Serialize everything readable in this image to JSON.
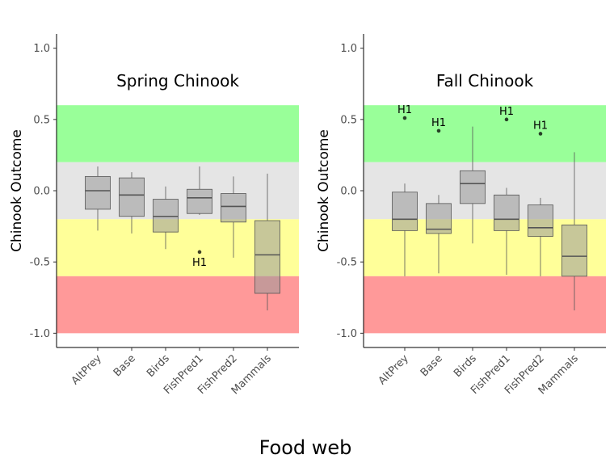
{
  "chart_data": {
    "xlabel": "Food web",
    "ylim": [
      -1.1,
      1.1
    ],
    "yticks": [
      1.0,
      0.5,
      0.0,
      -0.5,
      -1.0
    ],
    "ytick_labels": [
      "1.0",
      "0.5",
      "0.0",
      "-0.5",
      "-1.0"
    ],
    "bands": [
      {
        "from": 0.2,
        "to": 0.6,
        "color": "#99ff99"
      },
      {
        "from": -0.2,
        "to": 0.2,
        "color": "#e5e5e5"
      },
      {
        "from": -0.6,
        "to": -0.2,
        "color": "#ffff99"
      },
      {
        "from": -1.0,
        "to": -0.6,
        "color": "#ff9999"
      }
    ],
    "colors": {
      "box_fill": "#999999",
      "box_stroke": "#555555",
      "axis": "#000000"
    },
    "panels": [
      {
        "type": "box",
        "title": "Spring Chinook",
        "ylabel": "Chinook Outcome",
        "categories": [
          "AltPrey",
          "Base",
          "Birds",
          "FishPred1",
          "FishPred2",
          "Mammals"
        ],
        "boxes": [
          {
            "min": -0.28,
            "q1": -0.13,
            "median": 0.0,
            "q3": 0.1,
            "max": 0.17
          },
          {
            "min": -0.3,
            "q1": -0.18,
            "median": -0.03,
            "q3": 0.09,
            "max": 0.13
          },
          {
            "min": -0.41,
            "q1": -0.29,
            "median": -0.18,
            "q3": -0.06,
            "max": 0.03
          },
          {
            "min": -0.17,
            "q1": -0.16,
            "median": -0.05,
            "q3": 0.01,
            "max": 0.17
          },
          {
            "min": -0.47,
            "q1": -0.22,
            "median": -0.11,
            "q3": -0.02,
            "max": 0.1
          },
          {
            "min": -0.84,
            "q1": -0.72,
            "median": -0.45,
            "q3": -0.21,
            "max": 0.12
          }
        ],
        "outliers": [
          {
            "category": "FishPred1",
            "value": -0.43,
            "label": "H1"
          }
        ]
      },
      {
        "type": "box",
        "title": "Fall Chinook",
        "ylabel": "Chinook Outcome",
        "categories": [
          "AltPrey",
          "Base",
          "Birds",
          "FishPred1",
          "FishPred2",
          "Mammals"
        ],
        "boxes": [
          {
            "min": -0.6,
            "q1": -0.28,
            "median": -0.2,
            "q3": -0.01,
            "max": 0.05
          },
          {
            "min": -0.58,
            "q1": -0.3,
            "median": -0.27,
            "q3": -0.09,
            "max": -0.03
          },
          {
            "min": -0.37,
            "q1": -0.09,
            "median": 0.05,
            "q3": 0.14,
            "max": 0.45
          },
          {
            "min": -0.59,
            "q1": -0.28,
            "median": -0.2,
            "q3": -0.03,
            "max": 0.02
          },
          {
            "min": -0.6,
            "q1": -0.32,
            "median": -0.26,
            "q3": -0.1,
            "max": -0.05
          },
          {
            "min": -0.84,
            "q1": -0.6,
            "median": -0.46,
            "q3": -0.24,
            "max": 0.27
          }
        ],
        "outliers": [
          {
            "category": "AltPrey",
            "value": 0.51,
            "label": "H1"
          },
          {
            "category": "Base",
            "value": 0.42,
            "label": "H1"
          },
          {
            "category": "FishPred1",
            "value": 0.5,
            "label": "H1"
          },
          {
            "category": "FishPred2",
            "value": 0.4,
            "label": "H1"
          }
        ]
      }
    ]
  }
}
